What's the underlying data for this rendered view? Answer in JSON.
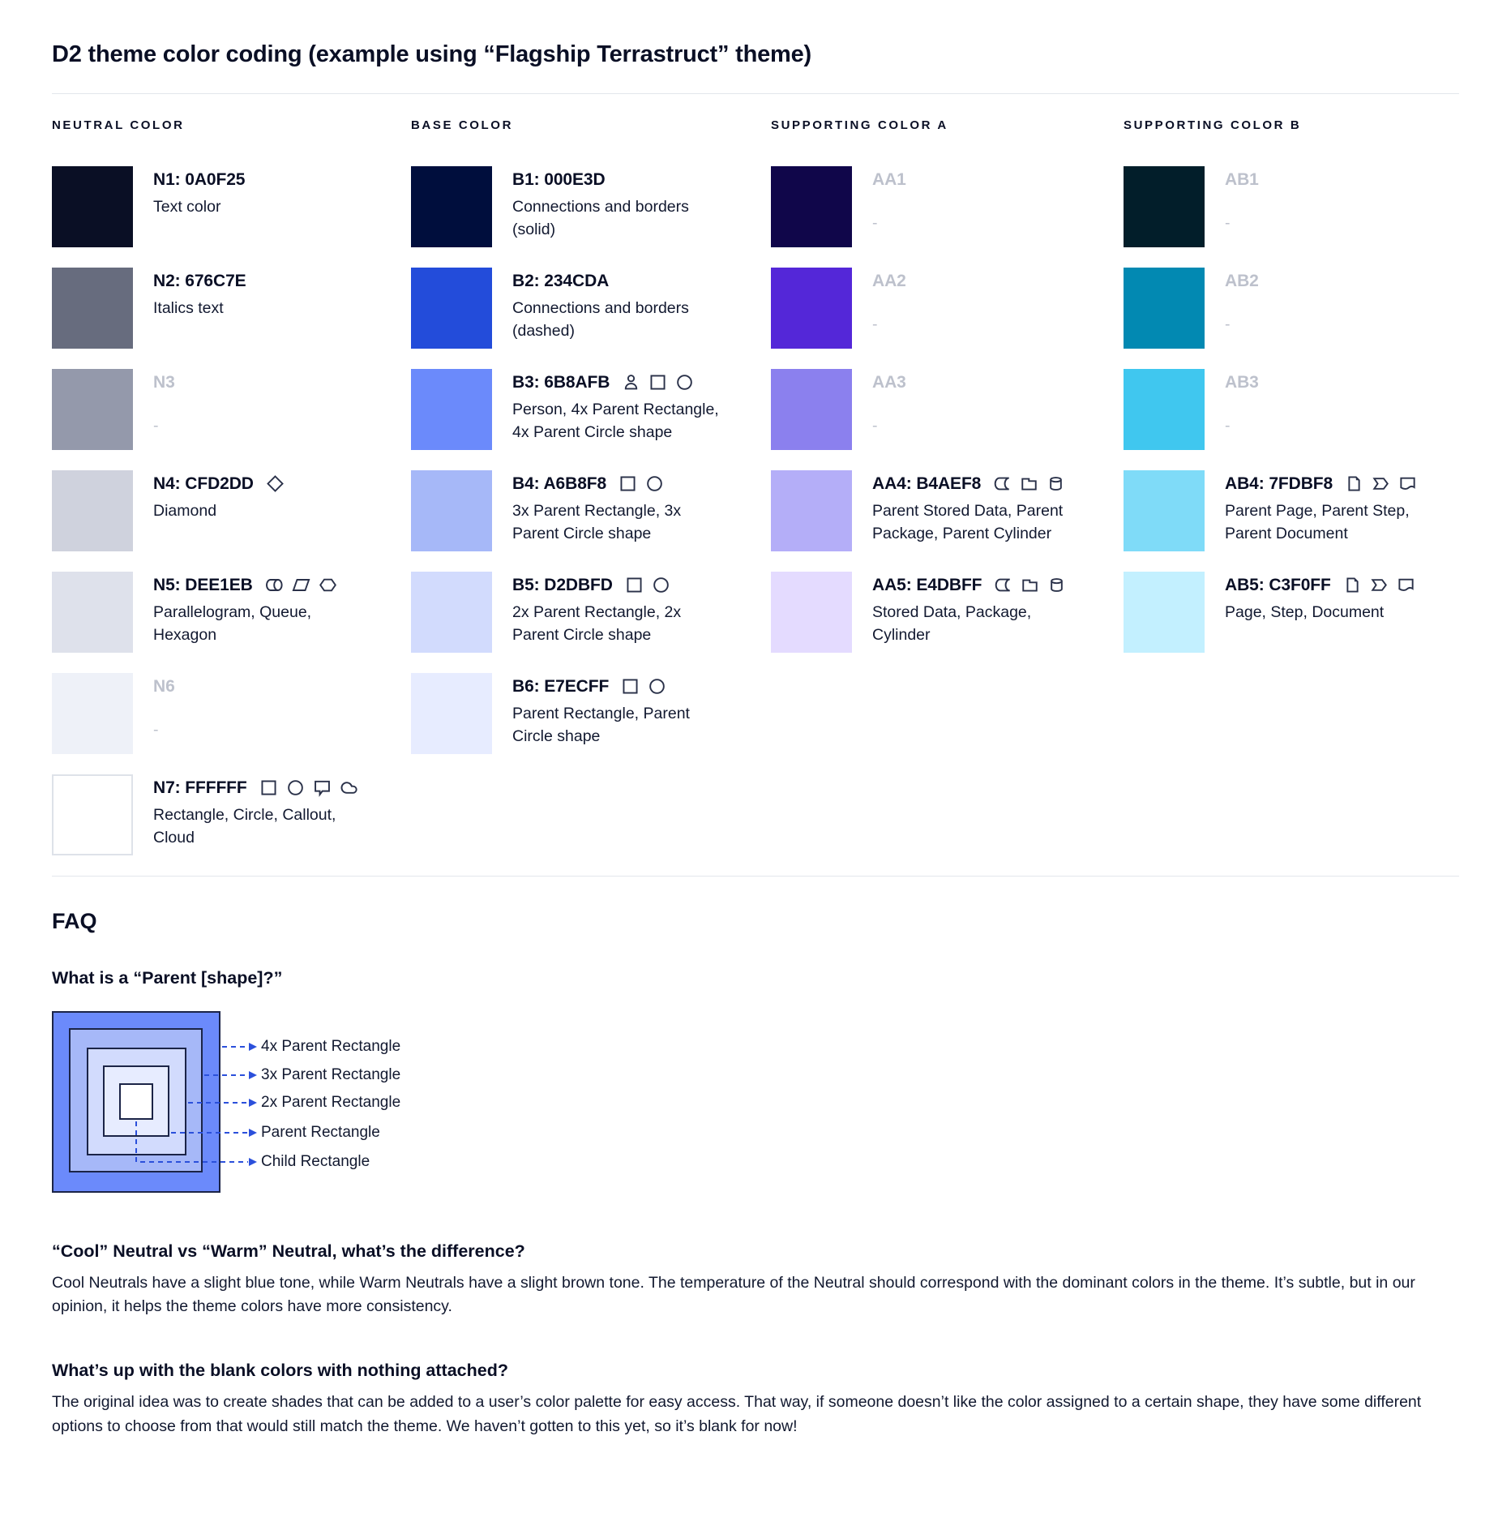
{
  "title": "D2 theme color coding (example using “Flagship Terrastruct” theme)",
  "columns": [
    {
      "header": "NEUTRAL COLOR",
      "rows": [
        {
          "label": "N1: 0A0F25",
          "color": "#0A0F25",
          "description": "Text color",
          "icons": [],
          "blank": false
        },
        {
          "label": "N2: 676C7E",
          "color": "#676C7E",
          "description": "Italics text",
          "icons": [],
          "blank": false
        },
        {
          "label": "N3",
          "color": "#9499AB",
          "description": "-",
          "icons": [],
          "blank": true
        },
        {
          "label": "N4: CFD2DD",
          "color": "#CFD2DD",
          "description": "Diamond",
          "icons": [
            "diamond"
          ],
          "blank": false
        },
        {
          "label": "N5: DEE1EB",
          "color": "#DEE1EB",
          "description": "Parallelogram, Queue, Hexagon",
          "icons": [
            "queue",
            "parallelogram",
            "hexagon"
          ],
          "blank": false
        },
        {
          "label": "N6",
          "color": "#EEF1F8",
          "description": "-",
          "icons": [],
          "blank": true
        },
        {
          "label": "N7: FFFFFF",
          "color": "#FFFFFF",
          "bordered": true,
          "description": "Rectangle, Circle, Callout, Cloud",
          "icons": [
            "rectangle",
            "circle",
            "callout",
            "cloud"
          ],
          "blank": false
        }
      ]
    },
    {
      "header": "BASE COLOR",
      "rows": [
        {
          "label": "B1: 000E3D",
          "color": "#000E3D",
          "description": "Connections and borders (solid)",
          "icons": [],
          "blank": false
        },
        {
          "label": "B2: 234CDA",
          "color": "#234CDA",
          "description": "Connections and borders (dashed)",
          "icons": [],
          "blank": false
        },
        {
          "label": "B3: 6B8AFB",
          "color": "#6B8AFB",
          "description": "Person, 4x Parent Rectangle, 4x Parent Circle shape",
          "icons": [
            "person",
            "rectangle",
            "circle"
          ],
          "blank": false
        },
        {
          "label": "B4: A6B8F8",
          "color": "#A6B8F8",
          "description": "3x Parent Rectangle, 3x Parent Circle shape",
          "icons": [
            "rectangle",
            "circle"
          ],
          "blank": false
        },
        {
          "label": "B5: D2DBFD",
          "color": "#D2DBFD",
          "description": "2x Parent Rectangle, 2x Parent Circle shape",
          "icons": [
            "rectangle",
            "circle"
          ],
          "blank": false
        },
        {
          "label": "B6: E7ECFF",
          "color": "#E7ECFF",
          "description": "Parent Rectangle, Parent Circle shape",
          "icons": [
            "rectangle",
            "circle"
          ],
          "blank": false
        }
      ]
    },
    {
      "header": "SUPPORTING COLOR A",
      "rows": [
        {
          "label": "AA1",
          "color": "#10064A",
          "description": "-",
          "icons": [],
          "blank": true
        },
        {
          "label": "AA2",
          "color": "#5427D8",
          "description": "-",
          "icons": [],
          "blank": true
        },
        {
          "label": "AA3",
          "color": "#8B80EE",
          "description": "-",
          "icons": [],
          "blank": true
        },
        {
          "label": "AA4: B4AEF8",
          "color": "#B4AEF8",
          "description": "Parent Stored Data, Parent Package, Parent Cylinder",
          "icons": [
            "stored-data",
            "package",
            "cylinder"
          ],
          "blank": false
        },
        {
          "label": "AA5: E4DBFF",
          "color": "#E4DBFF",
          "description": "Stored Data, Package, Cylinder",
          "icons": [
            "stored-data",
            "package",
            "cylinder"
          ],
          "blank": false
        }
      ]
    },
    {
      "header": "SUPPORTING COLOR B",
      "rows": [
        {
          "label": "AB1",
          "color": "#021E2A",
          "description": "-",
          "icons": [],
          "blank": true
        },
        {
          "label": "AB2",
          "color": "#0289B2",
          "description": "-",
          "icons": [],
          "blank": true
        },
        {
          "label": "AB3",
          "color": "#40C7EF",
          "description": "-",
          "icons": [],
          "blank": true
        },
        {
          "label": "AB4: 7FDBF8",
          "color": "#7FDBF8",
          "description": "Parent Page, Parent Step, Parent Document",
          "icons": [
            "page",
            "step",
            "document"
          ],
          "blank": false
        },
        {
          "label": "AB5: C3F0FF",
          "color": "#C3F0FF",
          "description": "Page, Step, Document",
          "icons": [
            "page",
            "step",
            "document"
          ],
          "blank": false
        }
      ]
    }
  ],
  "faq": {
    "heading": "FAQ",
    "q1": "What is a “Parent [shape]?”",
    "diagram": {
      "fills": [
        "#6B8AFB",
        "#A6B8F8",
        "#D2DBFD",
        "#E7ECFF",
        "#FFFFFF"
      ],
      "labels": [
        "4x Parent Rectangle",
        "3x Parent Rectangle",
        "2x Parent Rectangle",
        "Parent Rectangle",
        "Child Rectangle"
      ],
      "arrow_color": "#2B50DB",
      "border_color": "#1B2447"
    },
    "q2": "“Cool” Neutral vs “Warm” Neutral, what’s the difference?",
    "a2": "Cool Neutrals have a slight blue tone, while Warm Neutrals have a slight brown tone. The temperature of the Neutral should correspond with the dominant colors in the theme. It’s subtle, but in our opinion, it helps the theme colors have more consistency.",
    "q3": "What’s up with the blank colors with nothing attached?",
    "a3": "The original idea was to create shades that can be added to a user’s color palette for easy access. That way, if someone doesn’t like the color assigned to a certain shape, they have some different options to choose from that would still match the theme. We haven’t gotten to this yet, so it’s blank for now!"
  },
  "colors": {
    "text": "#0A0F25",
    "muted_label": "#BDC1CC",
    "divider": "#E3E6EC",
    "icon_stroke": "#2A3149"
  }
}
